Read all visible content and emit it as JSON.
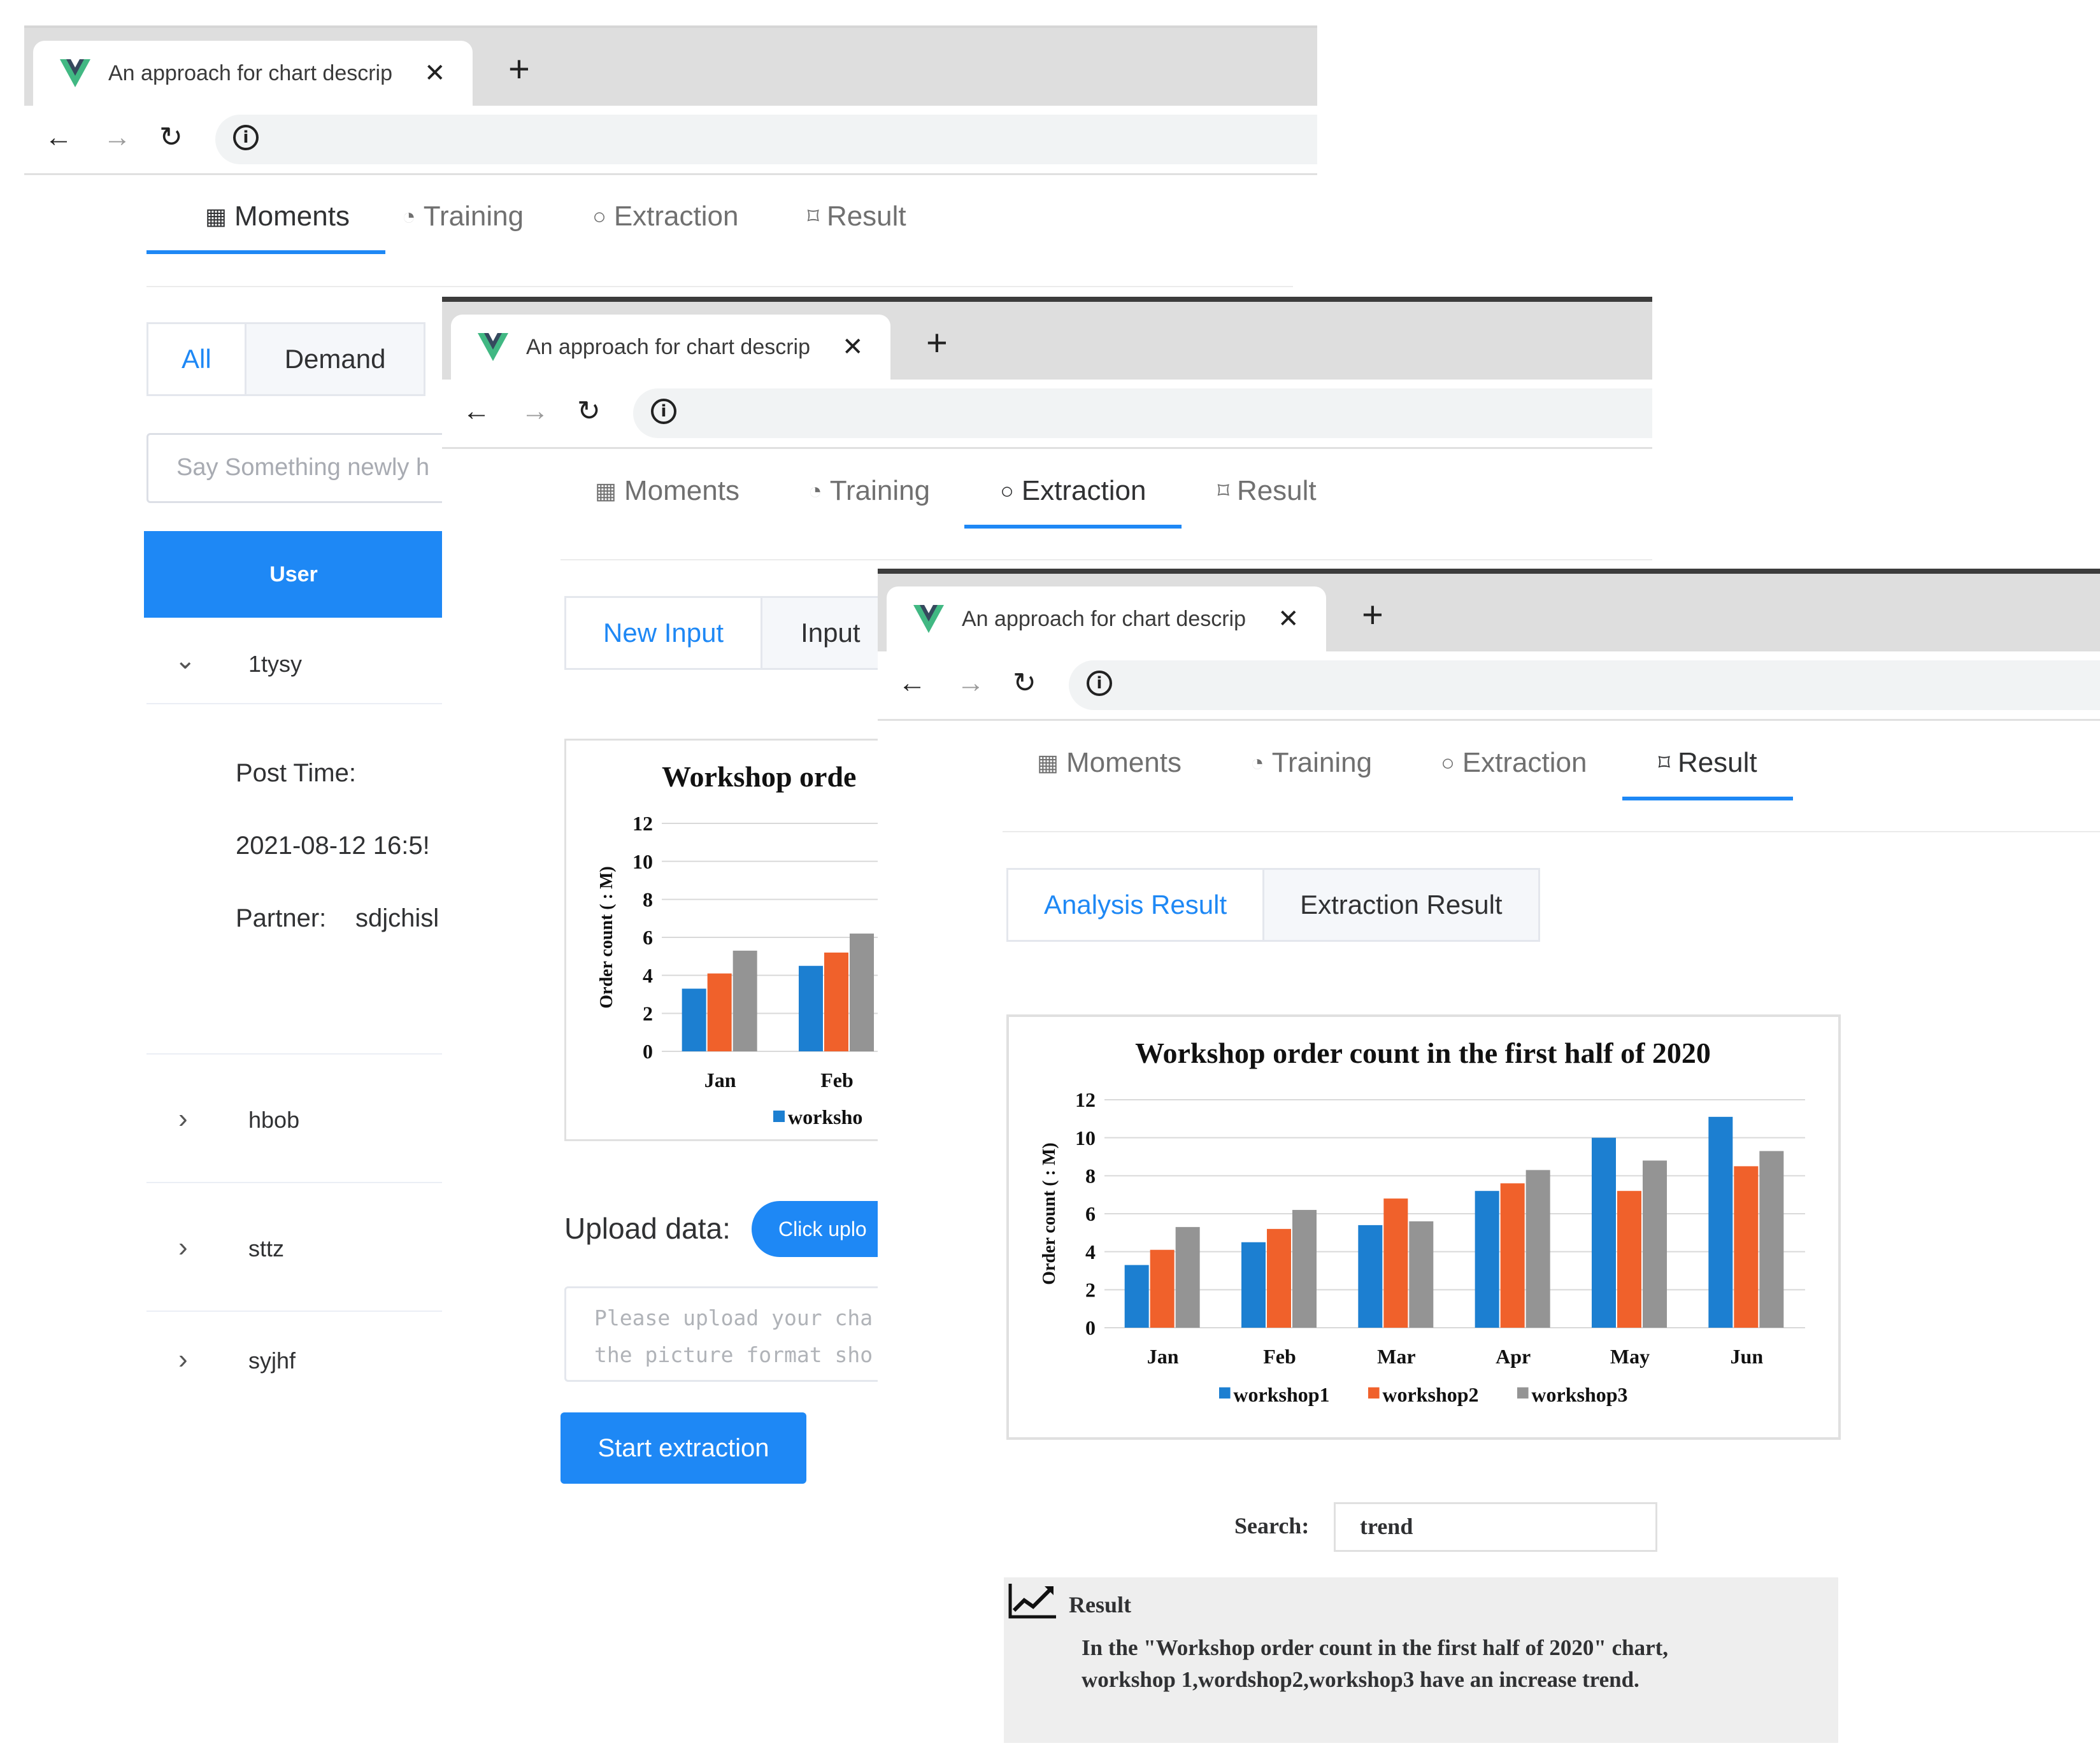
{
  "browser": {
    "tab_title": "An approach for chart descrip",
    "close_glyph": "✕",
    "new_tab_glyph": "+",
    "back_glyph": "←",
    "forward_glyph": "→",
    "reload_glyph": "↻",
    "info_glyph": "i"
  },
  "menu": [
    {
      "label": "Moments",
      "icon": "calendar-icon",
      "glyph": "▦"
    },
    {
      "label": "Training",
      "icon": "refresh-icon",
      "glyph": "◔"
    },
    {
      "label": "Extraction",
      "icon": "search-icon",
      "glyph": "○"
    },
    {
      "label": "Result",
      "icon": "bookmark-icon",
      "glyph": "⌑"
    }
  ],
  "colors": {
    "accent": "#1e88f5",
    "workshop1": "#1c7fd1",
    "workshop2": "#f0612b",
    "workshop3": "#949494"
  },
  "moments": {
    "tabs": [
      "All",
      "Demand"
    ],
    "search_placeholder": "Say Something newly h",
    "user_header": "User",
    "users": [
      {
        "name": "1tysy",
        "chevron": "⌄"
      },
      {
        "name": "hbob",
        "chevron": "›"
      },
      {
        "name": "sttz",
        "chevron": "›"
      },
      {
        "name": "syjhf",
        "chevron": "›"
      }
    ],
    "post_time_label": "Post Time:",
    "post_time_value": "2021-08-12 16:5!",
    "partner_label": "Partner:",
    "partner_value": "sdjchisl"
  },
  "extraction": {
    "tabs": [
      "New Input",
      "Input"
    ],
    "chart_title_partial": "Workshop orde",
    "legend_partial": "worksho",
    "upload_label": "Upload data:",
    "upload_button": "Click uplo",
    "textarea_placeholder": "Please upload your cha\nthe picture format sho",
    "start_button": "Start extraction"
  },
  "result": {
    "tabs": [
      "Analysis Result",
      "Extraction Result"
    ],
    "search_label": "Search:",
    "search_value": "trend",
    "result_heading": "Result",
    "result_text_line1": "In the \"Workshop order count in the first half of 2020\" chart,",
    "result_text_line2": "workshop 1,wordshop2,workshop3 have an increase trend."
  },
  "chart_data": {
    "type": "bar",
    "title": "Workshop order count in the first half of 2020",
    "ylabel": "Order count ( : M)",
    "xlabel": "",
    "ylim": [
      0,
      12
    ],
    "yticks": [
      0,
      2,
      4,
      6,
      8,
      10,
      12
    ],
    "grid": true,
    "legend_position": "bottom",
    "categories": [
      "Jan",
      "Feb",
      "Mar",
      "Apr",
      "May",
      "Jun"
    ],
    "series": [
      {
        "name": "workshop1",
        "values": [
          3.3,
          4.5,
          5.4,
          7.2,
          10.0,
          11.1
        ]
      },
      {
        "name": "workshop2",
        "values": [
          4.1,
          5.2,
          6.8,
          7.6,
          7.2,
          8.5
        ]
      },
      {
        "name": "workshop3",
        "values": [
          5.3,
          6.2,
          5.6,
          8.3,
          8.8,
          9.3
        ]
      }
    ]
  }
}
